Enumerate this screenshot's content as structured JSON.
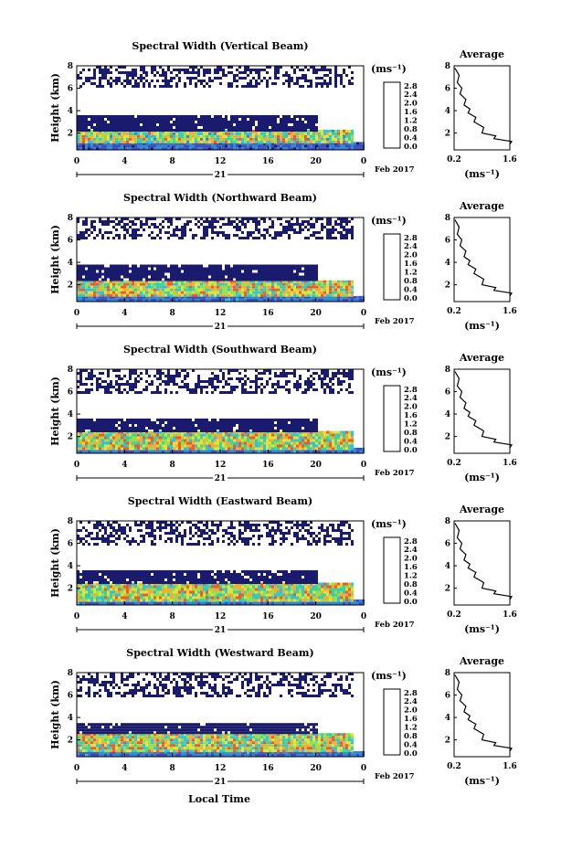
{
  "figure": {
    "bottom_xlabel": "Local Time",
    "date_label": "Feb 2017",
    "day_label": "21",
    "x_ticks": [
      "0",
      "4",
      "8",
      "12",
      "16",
      "20",
      "0"
    ],
    "y_ticks": [
      "2",
      "4",
      "6",
      "8"
    ],
    "height_label": "Height (km)",
    "cb_unit": "(ms⁻¹)",
    "cb_ticks": [
      "0.0",
      "0.4",
      "0.8",
      "1.2",
      "1.6",
      "2.0",
      "2.4",
      "2.8"
    ],
    "avg_title": "Average",
    "avg_x_ticks": [
      "0.2",
      "1.6"
    ],
    "avg_xlabel": "(ms⁻¹)",
    "colorscale": [
      "#1a1a6e",
      "#3a4bc4",
      "#2f86d6",
      "#2cc3e0",
      "#3fd39a",
      "#9adf4a",
      "#e6e03a",
      "#f5a93a",
      "#ee5a2a",
      "#d42222"
    ]
  },
  "chart_data": [
    {
      "type": "heatmap",
      "title": "Spectral Width (Vertical Beam)",
      "xlabel": "",
      "ylabel": "Height (km)",
      "xlim": [
        0,
        24
      ],
      "ylim": [
        0.5,
        8
      ],
      "color_range": [
        0,
        2.8
      ],
      "units": "ms⁻¹",
      "regions": [
        {
          "x": [
            0,
            24
          ],
          "y": [
            0.6,
            1.2
          ],
          "value": 0.5
        },
        {
          "x": [
            0,
            23
          ],
          "y": [
            1.2,
            2.3
          ],
          "value": 1.5
        },
        {
          "x": [
            0,
            20
          ],
          "y": [
            2.3,
            3.6
          ],
          "value": 0.25
        },
        {
          "x": [
            0,
            23
          ],
          "y": [
            6.2,
            8.0
          ],
          "value": 0.15
        }
      ],
      "average": {
        "x": [
          1.6,
          1.2,
          0.9,
          0.7,
          0.55,
          0.45,
          0.35,
          0.28,
          0.22
        ],
        "y": [
          1.0,
          1.5,
          2.0,
          3.0,
          3.8,
          4.5,
          5.5,
          6.5,
          7.8
        ]
      }
    },
    {
      "type": "heatmap",
      "title": "Spectral Width (Northward Beam)",
      "xlabel": "",
      "ylabel": "Height (km)",
      "xlim": [
        0,
        24
      ],
      "ylim": [
        0.5,
        8
      ],
      "color_range": [
        0,
        2.8
      ],
      "units": "ms⁻¹",
      "regions": [
        {
          "x": [
            0,
            24
          ],
          "y": [
            0.6,
            1.0
          ],
          "value": 0.6
        },
        {
          "x": [
            0,
            23
          ],
          "y": [
            1.0,
            2.4
          ],
          "value": 1.6
        },
        {
          "x": [
            0,
            20
          ],
          "y": [
            2.4,
            3.8
          ],
          "value": 0.25
        },
        {
          "x": [
            0,
            23
          ],
          "y": [
            6.2,
            8.0
          ],
          "value": 0.15
        }
      ],
      "average": {
        "x": [
          1.6,
          1.2,
          0.9,
          0.7,
          0.55,
          0.45,
          0.35,
          0.28,
          0.22
        ],
        "y": [
          1.0,
          1.5,
          2.0,
          3.0,
          3.8,
          4.5,
          5.5,
          6.5,
          7.8
        ]
      }
    },
    {
      "type": "heatmap",
      "title": "Spectral Width (Southward Beam)",
      "xlabel": "",
      "ylabel": "Height (km)",
      "xlim": [
        0,
        24
      ],
      "ylim": [
        0.5,
        8
      ],
      "color_range": [
        0,
        2.8
      ],
      "units": "ms⁻¹",
      "regions": [
        {
          "x": [
            0,
            24
          ],
          "y": [
            0.6,
            1.0
          ],
          "value": 0.6
        },
        {
          "x": [
            0,
            23
          ],
          "y": [
            1.0,
            2.5
          ],
          "value": 1.6
        },
        {
          "x": [
            0,
            20
          ],
          "y": [
            2.5,
            3.6
          ],
          "value": 0.25
        },
        {
          "x": [
            0,
            23
          ],
          "y": [
            5.8,
            8.0
          ],
          "value": 0.15
        }
      ],
      "average": {
        "x": [
          1.6,
          1.2,
          0.9,
          0.7,
          0.55,
          0.45,
          0.35,
          0.28,
          0.22
        ],
        "y": [
          1.0,
          1.5,
          2.0,
          3.0,
          3.8,
          4.5,
          5.5,
          6.5,
          7.8
        ]
      }
    },
    {
      "type": "heatmap",
      "title": "Spectral Width (Eastward Beam)",
      "xlabel": "",
      "ylabel": "Height (km)",
      "xlim": [
        0,
        24
      ],
      "ylim": [
        0.5,
        8
      ],
      "color_range": [
        0,
        2.8
      ],
      "units": "ms⁻¹",
      "regions": [
        {
          "x": [
            0,
            24
          ],
          "y": [
            0.6,
            1.0
          ],
          "value": 0.6
        },
        {
          "x": [
            0,
            23
          ],
          "y": [
            1.0,
            2.5
          ],
          "value": 1.6
        },
        {
          "x": [
            0,
            20
          ],
          "y": [
            2.5,
            3.6
          ],
          "value": 0.25
        },
        {
          "x": [
            0,
            23
          ],
          "y": [
            6.0,
            8.0
          ],
          "value": 0.15
        }
      ],
      "average": {
        "x": [
          1.6,
          1.2,
          0.9,
          0.7,
          0.55,
          0.45,
          0.35,
          0.28,
          0.22
        ],
        "y": [
          1.0,
          1.5,
          2.0,
          3.0,
          3.8,
          4.5,
          5.5,
          6.5,
          7.8
        ]
      }
    },
    {
      "type": "heatmap",
      "title": "Spectral Width (Westward Beam)",
      "xlabel": "Local Time",
      "ylabel": "Height (km)",
      "xlim": [
        0,
        24
      ],
      "ylim": [
        0.5,
        8
      ],
      "color_range": [
        0,
        2.8
      ],
      "units": "ms⁻¹",
      "regions": [
        {
          "x": [
            0,
            24
          ],
          "y": [
            0.6,
            1.0
          ],
          "value": 0.6
        },
        {
          "x": [
            0,
            23
          ],
          "y": [
            1.0,
            2.6
          ],
          "value": 1.6
        },
        {
          "x": [
            0,
            20
          ],
          "y": [
            2.6,
            3.5
          ],
          "value": 0.25
        },
        {
          "x": [
            0,
            23
          ],
          "y": [
            6.0,
            8.0
          ],
          "value": 0.15
        }
      ],
      "average": {
        "x": [
          1.6,
          1.2,
          0.9,
          0.7,
          0.55,
          0.45,
          0.35,
          0.28,
          0.22
        ],
        "y": [
          1.0,
          1.5,
          2.0,
          3.0,
          3.8,
          4.5,
          5.5,
          6.5,
          7.8
        ]
      }
    }
  ]
}
